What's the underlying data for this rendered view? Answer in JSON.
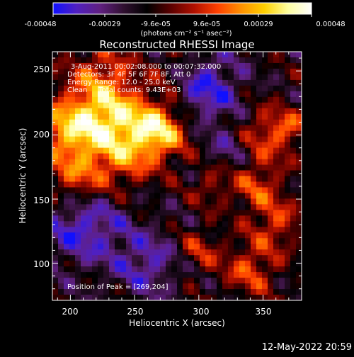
{
  "colorbar": {
    "stops": [
      "#1010ff",
      "#5020c0",
      "#602080",
      "#301030",
      "#000000",
      "#5a0000",
      "#b01000",
      "#ff4000",
      "#ff9000",
      "#ffd000",
      "#ffffa0",
      "#ffffff"
    ],
    "tick_labels": [
      "-0.00048",
      "-0.00029",
      "-9.6e-05",
      "9.6e-05",
      "0.00029",
      "0.00048"
    ],
    "unit_label": "(photons cm⁻² s⁻¹ asec⁻²)"
  },
  "chart_data": {
    "type": "heatmap",
    "title": "Reconstructed RHESSI Image",
    "xlabel": "Heliocentric X (arcsec)",
    "ylabel": "Heliocentric Y (arcsec)",
    "xlim": [
      186,
      380
    ],
    "ylim": [
      71,
      265
    ],
    "xticks": [
      200,
      250,
      300,
      350
    ],
    "yticks": [
      100,
      150,
      200,
      250
    ],
    "value_range": [
      -0.00048,
      0.00048
    ],
    "peak": [
      269,
      204
    ],
    "info_lines": [
      "3-Aug-2011 00:02:08.000 to 00:07:32.000",
      "Detectors: 3F 4F 5F 6F 7F 8F, Att 0",
      "Energy Range: 12.0 - 25.0 keV",
      "Clean     Total counts: 9.43E+03"
    ],
    "peak_label": "Position of Peak = [269,204]"
  },
  "footer": {
    "date": "12-May-2022 20:59"
  }
}
